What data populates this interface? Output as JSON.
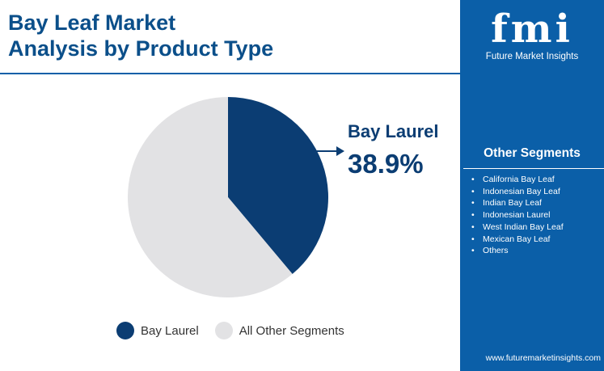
{
  "header": {
    "title_line1": "Bay Leaf Market",
    "title_line2": "Analysis by Product Type"
  },
  "chart_data": {
    "type": "pie",
    "slices": [
      {
        "label": "Bay Laurel",
        "value": 38.9,
        "color": "#0b3d73"
      },
      {
        "label": "All Other Segments",
        "value": 61.1,
        "color": "#e2e2e4"
      }
    ],
    "callout": {
      "label": "Bay Laurel",
      "value_text": "38.9%"
    },
    "legend": {
      "placement": "bottom",
      "items": [
        "Bay Laurel",
        "All Other Segments"
      ]
    }
  },
  "sidebar": {
    "brand_name": "fmi",
    "brand_subtitle": "Future Market Insights",
    "header": "Other Segments",
    "items": [
      "California Bay Leaf",
      "Indonesian Bay Leaf",
      "Indian Bay Leaf",
      "Indonesian Laurel",
      "West Indian Bay Leaf",
      "Mexican Bay Leaf",
      "Others"
    ],
    "url": "www.futuremarketinsights.com",
    "background_color": "#0b5fa8"
  }
}
